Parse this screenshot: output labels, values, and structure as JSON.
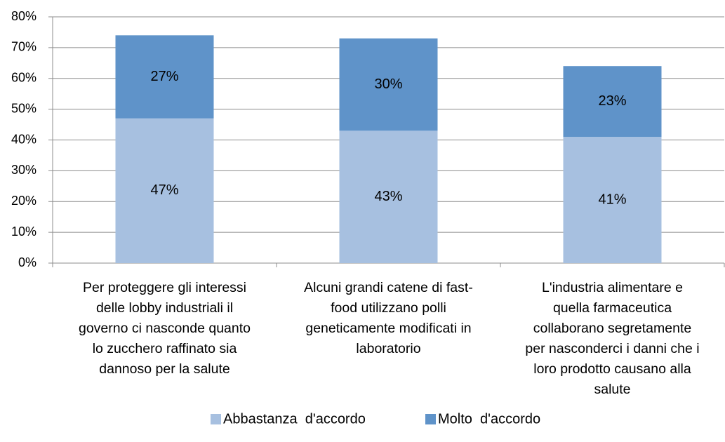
{
  "chart_data": {
    "type": "stacked-bar",
    "categories": [
      "Per proteggere gli interessi\ndelle lobby industriali il\ngoverno ci nasconde quanto\nlo zucchero raffinato sia\ndannoso per la salute",
      "Alcuni grandi catene di fast-\nfood utilizzano polli\ngeneticamente modificati in\nlaboratorio",
      "L'industria alimentare e\nquella farmaceutica\ncollaborano segretamente\nper nasconderci i danni che i\nloro prodotto causano alla\nsalute"
    ],
    "series": [
      {
        "name": "Abbastanza  d'accordo",
        "color": "#a7c0e0",
        "values": [
          47,
          43,
          41
        ],
        "value_labels": [
          "47%",
          "43%",
          "41%"
        ]
      },
      {
        "name": "Molto  d'accordo",
        "color": "#5f93c9",
        "values": [
          27,
          30,
          23
        ],
        "value_labels": [
          "27%",
          "30%",
          "23%"
        ]
      }
    ],
    "ylim": [
      0,
      80
    ],
    "yticks": [
      {
        "value": 0,
        "label": "0%"
      },
      {
        "value": 10,
        "label": "10%"
      },
      {
        "value": 20,
        "label": "20%"
      },
      {
        "value": 30,
        "label": "30%"
      },
      {
        "value": 40,
        "label": "40%"
      },
      {
        "value": 50,
        "label": "50%"
      },
      {
        "value": 60,
        "label": "60%"
      },
      {
        "value": 70,
        "label": "70%"
      },
      {
        "value": 80,
        "label": "80%"
      }
    ],
    "grid": true,
    "legend": "bottom"
  }
}
